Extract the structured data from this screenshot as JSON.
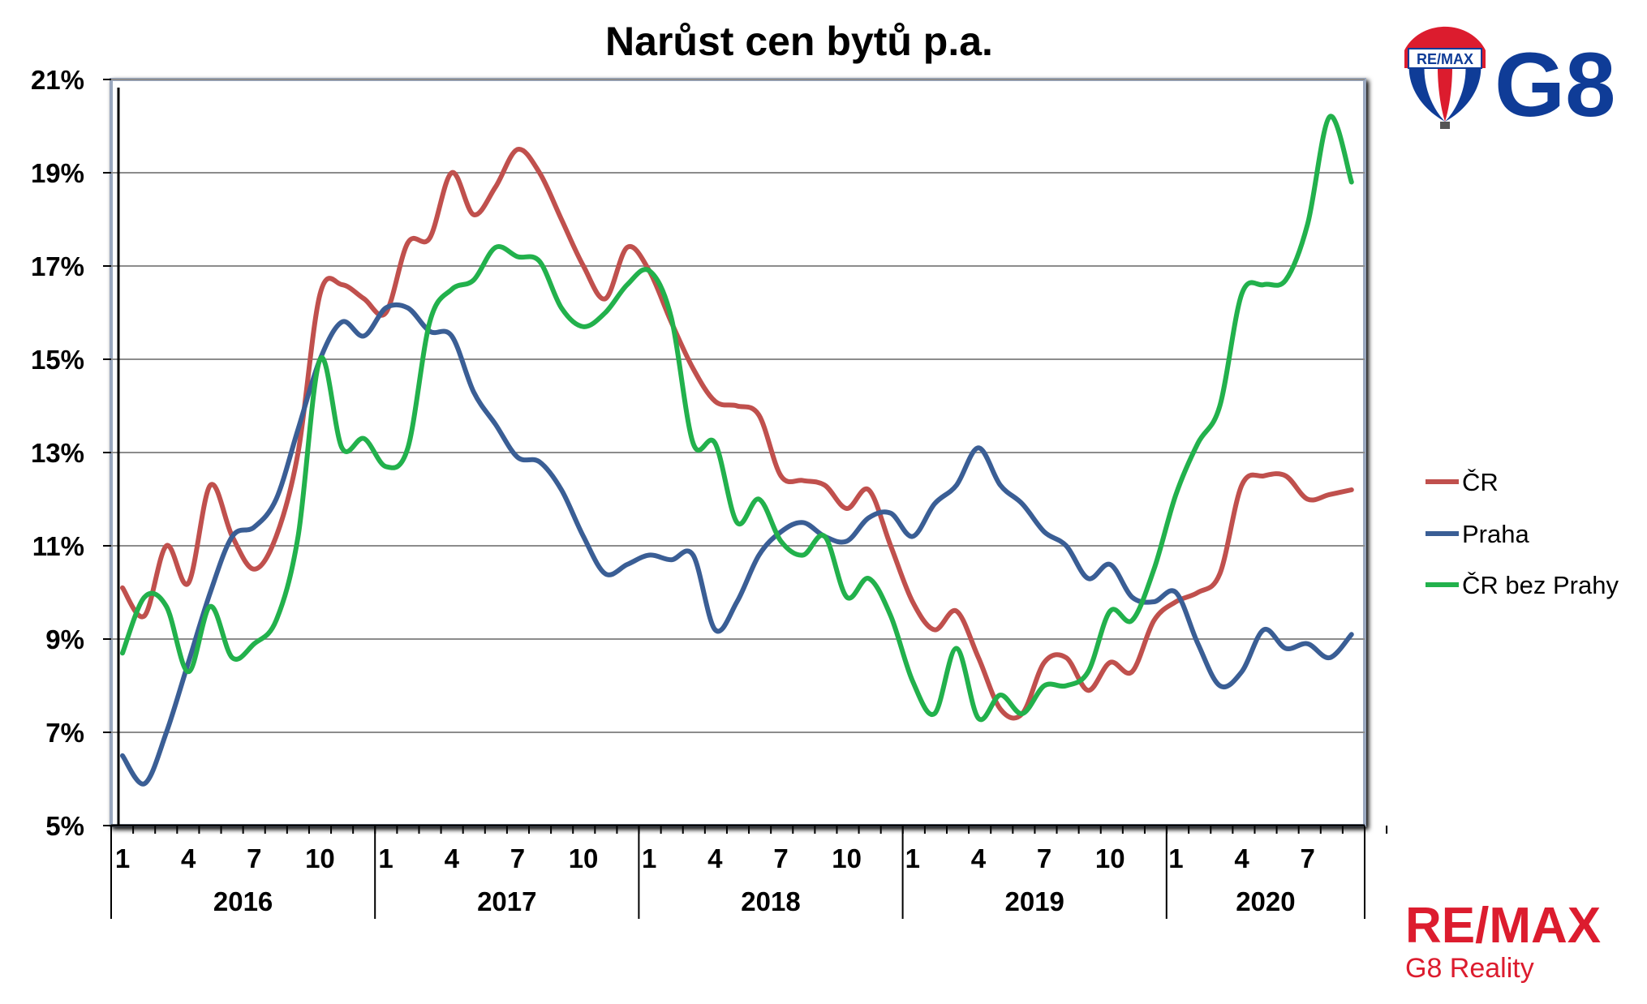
{
  "brand": {
    "balloon_text": "RE/MAX",
    "g8_text": "G8",
    "remax_word": "RE/MAX",
    "subtitle": "G8 Reality",
    "colors": {
      "red": "#dc1c2e",
      "blue": "#0f3c97"
    }
  },
  "chart_data": {
    "type": "line",
    "title": "Narůst cen bytů p.a.",
    "xlabel": "",
    "ylabel": "",
    "ylim": [
      5,
      21
    ],
    "y_ticks": [
      5,
      7,
      9,
      11,
      13,
      15,
      17,
      19,
      21
    ],
    "y_tick_labels": [
      "5%",
      "7%",
      "9%",
      "11%",
      "13%",
      "15%",
      "17%",
      "19%",
      "21%"
    ],
    "x_month_labels": [
      "1",
      "4",
      "7",
      "10",
      "1",
      "4",
      "7",
      "10",
      "1",
      "4",
      "7",
      "10",
      "1",
      "4",
      "7",
      "10",
      "1",
      "4",
      "7"
    ],
    "years": [
      "2016",
      "2017",
      "2018",
      "2019",
      "2020"
    ],
    "grid": true,
    "legend_position": "right",
    "x_start": "2016-01",
    "x_end": "2020-10",
    "series": [
      {
        "name": "ČR",
        "color": "#c0504d",
        "values": [
          10.1,
          9.5,
          11.0,
          10.2,
          12.3,
          11.2,
          10.5,
          11.2,
          13.0,
          16.4,
          16.6,
          16.3,
          16.0,
          17.5,
          17.6,
          19.0,
          18.1,
          18.7,
          19.5,
          19.0,
          18.0,
          17.0,
          16.3,
          17.4,
          16.9,
          15.8,
          14.8,
          14.1,
          14.0,
          13.8,
          12.5,
          12.4,
          12.3,
          11.8,
          12.2,
          11.0,
          9.8,
          9.2,
          9.6,
          8.6,
          7.5,
          7.4,
          8.5,
          8.6,
          7.9,
          8.5,
          8.3,
          9.4,
          9.8,
          10.0,
          10.4,
          12.3,
          12.5,
          12.5,
          12.0,
          12.1,
          12.2
        ]
      },
      {
        "name": "Praha",
        "color": "#3a5e95",
        "values": [
          6.5,
          5.9,
          7.0,
          8.5,
          10.0,
          11.2,
          11.4,
          12.0,
          13.5,
          15.0,
          15.8,
          15.5,
          16.1,
          16.1,
          15.6,
          15.5,
          14.3,
          13.6,
          12.9,
          12.8,
          12.2,
          11.2,
          10.4,
          10.6,
          10.8,
          10.7,
          10.8,
          9.2,
          9.8,
          10.8,
          11.3,
          11.5,
          11.2,
          11.1,
          11.6,
          11.7,
          11.2,
          11.9,
          12.3,
          13.1,
          12.3,
          11.9,
          11.3,
          11.0,
          10.3,
          10.6,
          9.9,
          9.8,
          10.0,
          8.9,
          8.0,
          8.3,
          9.2,
          8.8,
          8.9,
          8.6,
          9.1
        ]
      },
      {
        "name": "ČR bez Prahy",
        "color": "#22b14c",
        "values": [
          8.7,
          9.9,
          9.7,
          8.3,
          9.7,
          8.6,
          8.9,
          9.4,
          11.2,
          15.0,
          13.1,
          13.3,
          12.7,
          13.1,
          15.8,
          16.5,
          16.7,
          17.4,
          17.2,
          17.1,
          16.1,
          15.7,
          16.0,
          16.6,
          16.9,
          15.9,
          13.2,
          13.2,
          11.5,
          12.0,
          11.1,
          10.8,
          11.2,
          9.9,
          10.3,
          9.5,
          8.1,
          7.4,
          8.8,
          7.3,
          7.8,
          7.4,
          8.0,
          8.0,
          8.3,
          9.6,
          9.4,
          10.5,
          12.1,
          13.2,
          14.0,
          16.4,
          16.6,
          16.7,
          17.9,
          20.2,
          18.8
        ]
      }
    ]
  }
}
